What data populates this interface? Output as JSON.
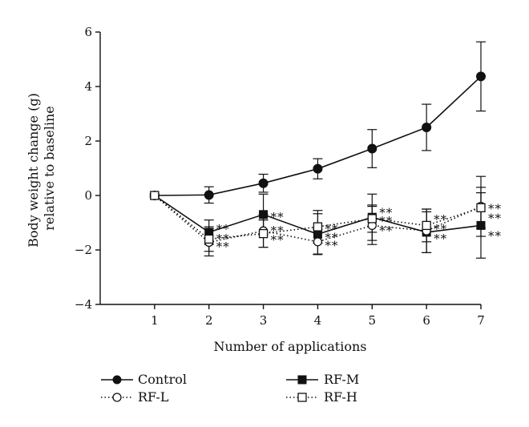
{
  "chart_data": {
    "type": "line",
    "xlabel": "Number of applications",
    "ylabel_lines": [
      "Body weight change (g)",
      "relative to baseline"
    ],
    "x": [
      1,
      2,
      3,
      4,
      5,
      6,
      7
    ],
    "xlim": [
      0,
      7
    ],
    "ylim": [
      -4,
      6
    ],
    "xticks": [
      "1",
      "2",
      "3",
      "4",
      "5",
      "6",
      "7"
    ],
    "yticks": [
      "−4",
      "−2",
      "0",
      "2",
      "4",
      "6"
    ],
    "ytick_values": [
      -4,
      -2,
      0,
      2,
      4,
      6
    ],
    "grid": false,
    "legend_position": "bottom",
    "series": [
      {
        "name": "Control",
        "marker": "filled-circle",
        "line": "solid",
        "values": [
          0,
          0.02,
          0.45,
          0.98,
          1.72,
          2.5,
          4.37
        ],
        "errors": [
          0.05,
          0.3,
          0.33,
          0.37,
          0.7,
          0.85,
          1.27
        ]
      },
      {
        "name": "RF-M",
        "marker": "filled-square",
        "line": "solid",
        "values": [
          0,
          -1.35,
          -0.7,
          -1.42,
          -0.8,
          -1.35,
          -1.1
        ],
        "errors": [
          0.05,
          0.45,
          0.75,
          0.75,
          0.85,
          0.75,
          1.2
        ]
      },
      {
        "name": "RF-L",
        "marker": "open-circle",
        "line": "dotted",
        "values": [
          0,
          -1.72,
          -1.3,
          -1.7,
          -1.1,
          -1.3,
          -0.4
        ],
        "errors": [
          0.05,
          0.5,
          0.6,
          0.45,
          0.7,
          0.8,
          1.1
        ]
      },
      {
        "name": "RF-H",
        "marker": "open-square",
        "line": "dotted",
        "values": [
          0,
          -1.6,
          -1.4,
          -1.15,
          -0.85,
          -1.1,
          -0.45
        ],
        "errors": [
          0.05,
          0.45,
          0.5,
          0.6,
          0.5,
          0.6,
          0.75
        ]
      }
    ],
    "annotations": [
      {
        "x": 2,
        "y": -1.15,
        "text": "**"
      },
      {
        "x": 2,
        "y": -1.5,
        "text": "**"
      },
      {
        "x": 2,
        "y": -1.8,
        "text": "**"
      },
      {
        "x": 3,
        "y": -0.7,
        "text": "**"
      },
      {
        "x": 3,
        "y": -1.2,
        "text": "**"
      },
      {
        "x": 3,
        "y": -1.55,
        "text": "**"
      },
      {
        "x": 4,
        "y": -1.15,
        "text": "**"
      },
      {
        "x": 4,
        "y": -1.45,
        "text": "**"
      },
      {
        "x": 4,
        "y": -1.75,
        "text": "**"
      },
      {
        "x": 5,
        "y": -0.55,
        "text": "**"
      },
      {
        "x": 5,
        "y": -0.85,
        "text": "**"
      },
      {
        "x": 5,
        "y": -1.2,
        "text": "**"
      },
      {
        "x": 6,
        "y": -0.8,
        "text": "**"
      },
      {
        "x": 6,
        "y": -1.15,
        "text": "**"
      },
      {
        "x": 6,
        "y": -1.5,
        "text": "**"
      },
      {
        "x": 7,
        "y": -0.4,
        "text": "**"
      },
      {
        "x": 7,
        "y": -0.75,
        "text": "**"
      },
      {
        "x": 7,
        "y": -1.4,
        "text": "**"
      }
    ]
  },
  "legend": {
    "items": [
      "Control",
      "RF-M",
      "RF-L",
      "RF-H"
    ]
  },
  "colors": {
    "ink": "#111111",
    "background": "#ffffff"
  }
}
